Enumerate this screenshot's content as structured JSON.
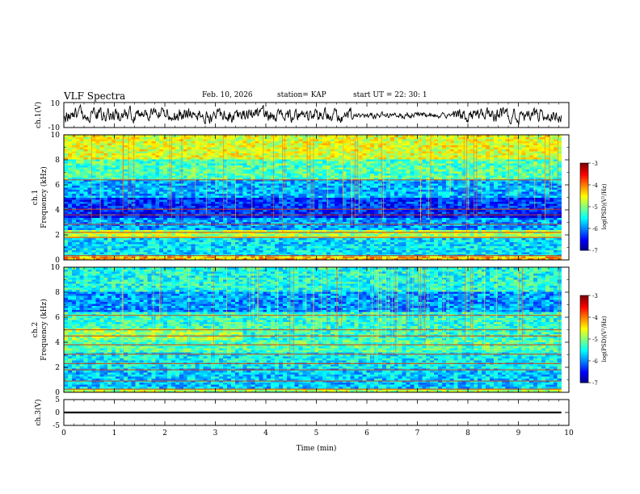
{
  "header": {
    "title": "VLF Spectra",
    "date": "Feb. 10, 2026",
    "station": "station= KAP",
    "start": "start  UT =   22: 30: 1"
  },
  "colorbar": {
    "label": "log(PSD)(V²/Hz)",
    "ticks": [
      "-3",
      "-4",
      "-5",
      "-6",
      "-7"
    ],
    "range": [
      -7,
      -3
    ]
  },
  "chart_data": [
    {
      "type": "line",
      "panel": "ch1-waveform",
      "ylabel": "ch.1(V)",
      "ylim": [
        -10,
        10
      ],
      "yticks": [
        "10",
        "-10"
      ],
      "x_range_min": [
        0,
        9.85
      ],
      "description_values": "noisy waveform, amplitude mostly within -8..8 V"
    },
    {
      "type": "heatmap",
      "panel": "ch1-spectrogram",
      "ylabel": "ch.1 Frequency (kHz)",
      "ylim": [
        0,
        10
      ],
      "yticks": [
        "0",
        "2",
        "4",
        "6",
        "8",
        "10"
      ],
      "colorbar_range": [
        -7,
        -3
      ],
      "x_range_min": [
        0,
        9.85
      ],
      "bands": [
        {
          "f0": 0.0,
          "f1": 0.3,
          "level": -4.2
        },
        {
          "f0": 0.3,
          "f1": 1.8,
          "level": -5.6
        },
        {
          "f0": 1.8,
          "f1": 2.4,
          "level": -4.8
        },
        {
          "f0": 2.4,
          "f1": 3.4,
          "level": -5.9
        },
        {
          "f0": 3.4,
          "f1": 4.0,
          "level": -6.4
        },
        {
          "f0": 4.0,
          "f1": 5.0,
          "level": -6.3
        },
        {
          "f0": 5.0,
          "f1": 6.5,
          "level": -5.8
        },
        {
          "f0": 6.5,
          "f1": 8.0,
          "level": -5.2
        },
        {
          "f0": 8.0,
          "f1": 10.0,
          "level": -4.6
        }
      ]
    },
    {
      "type": "heatmap",
      "panel": "ch2-spectrogram",
      "ylabel": "ch.2 Frequency (kHz)",
      "ylim": [
        0,
        10
      ],
      "yticks": [
        "0",
        "2",
        "4",
        "6",
        "8",
        "10"
      ],
      "colorbar_range": [
        -7,
        -3
      ],
      "x_range_min": [
        0,
        9.85
      ],
      "bands": [
        {
          "f0": 0.0,
          "f1": 0.4,
          "level": -4.8
        },
        {
          "f0": 0.4,
          "f1": 2.0,
          "level": -5.7
        },
        {
          "f0": 2.0,
          "f1": 3.2,
          "level": -5.5
        },
        {
          "f0": 3.2,
          "f1": 4.2,
          "level": -5.2
        },
        {
          "f0": 4.2,
          "f1": 5.2,
          "level": -4.9
        },
        {
          "f0": 5.2,
          "f1": 6.5,
          "level": -5.3
        },
        {
          "f0": 6.5,
          "f1": 8.0,
          "level": -5.9
        },
        {
          "f0": 8.0,
          "f1": 10.0,
          "level": -5.4
        }
      ]
    },
    {
      "type": "line",
      "panel": "ch3-waveform",
      "ylabel": "ch.3(V)",
      "ylim": [
        -5,
        5
      ],
      "yticks": [
        "5",
        "0",
        "-5"
      ],
      "x_range_min": [
        0,
        9.85
      ],
      "y_band": [
        -0.35,
        0.35
      ]
    }
  ],
  "xaxis": {
    "label": "Time (min)",
    "range": [
      0,
      10
    ],
    "ticks": [
      "0",
      "1",
      "2",
      "3",
      "4",
      "5",
      "6",
      "7",
      "8",
      "9",
      "10"
    ]
  }
}
